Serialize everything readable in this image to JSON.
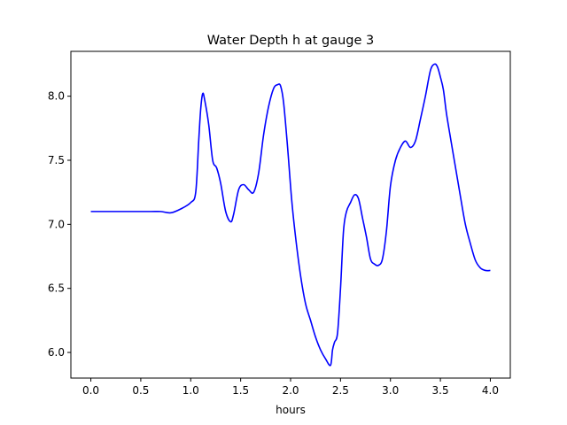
{
  "chart_data": {
    "type": "line",
    "title": "Water Depth h at gauge 3",
    "xlabel": "hours",
    "ylabel": "",
    "xlim": [
      -0.2,
      4.2
    ],
    "ylim": [
      5.8,
      8.35
    ],
    "xticks": [
      0.0,
      0.5,
      1.0,
      1.5,
      2.0,
      2.5,
      3.0,
      3.5,
      4.0
    ],
    "xtick_labels": [
      "0.0",
      "0.5",
      "1.0",
      "1.5",
      "2.0",
      "2.5",
      "3.0",
      "3.5",
      "4.0"
    ],
    "yticks": [
      6.0,
      6.5,
      7.0,
      7.5,
      8.0
    ],
    "ytick_labels": [
      "6.0",
      "6.5",
      "7.0",
      "7.5",
      "8.0"
    ],
    "grid": false,
    "legend": "none",
    "series": [
      {
        "color": "#0000ff",
        "x": [
          0.0,
          0.2,
          0.4,
          0.6,
          0.7,
          0.8,
          0.9,
          1.0,
          1.05,
          1.08,
          1.1,
          1.12,
          1.14,
          1.18,
          1.22,
          1.26,
          1.3,
          1.35,
          1.4,
          1.43,
          1.48,
          1.53,
          1.58,
          1.63,
          1.68,
          1.73,
          1.78,
          1.83,
          1.87,
          1.9,
          1.93,
          1.97,
          2.01,
          2.05,
          2.1,
          2.15,
          2.2,
          2.25,
          2.3,
          2.35,
          2.4,
          2.42,
          2.44,
          2.47,
          2.5,
          2.53,
          2.56,
          2.6,
          2.64,
          2.68,
          2.72,
          2.76,
          2.8,
          2.84,
          2.88,
          2.92,
          2.96,
          3.0,
          3.05,
          3.1,
          3.15,
          3.2,
          3.25,
          3.3,
          3.35,
          3.4,
          3.44,
          3.47,
          3.5,
          3.53,
          3.56,
          3.6,
          3.65,
          3.7,
          3.75,
          3.8,
          3.85,
          3.9,
          3.95,
          4.0
        ],
        "y": [
          7.1,
          7.1,
          7.1,
          7.1,
          7.1,
          7.09,
          7.12,
          7.17,
          7.25,
          7.65,
          7.9,
          8.02,
          7.97,
          7.78,
          7.5,
          7.44,
          7.32,
          7.1,
          7.02,
          7.08,
          7.27,
          7.31,
          7.27,
          7.25,
          7.4,
          7.7,
          7.92,
          8.06,
          8.09,
          8.08,
          7.95,
          7.6,
          7.2,
          6.9,
          6.6,
          6.38,
          6.25,
          6.12,
          6.02,
          5.95,
          5.9,
          6.02,
          6.08,
          6.15,
          6.5,
          6.95,
          7.1,
          7.17,
          7.23,
          7.2,
          7.05,
          6.9,
          6.73,
          6.69,
          6.68,
          6.73,
          6.95,
          7.3,
          7.5,
          7.6,
          7.65,
          7.6,
          7.65,
          7.82,
          8.0,
          8.2,
          8.25,
          8.23,
          8.15,
          8.05,
          7.87,
          7.68,
          7.45,
          7.22,
          7.0,
          6.85,
          6.72,
          6.66,
          6.64,
          6.64
        ]
      }
    ]
  }
}
